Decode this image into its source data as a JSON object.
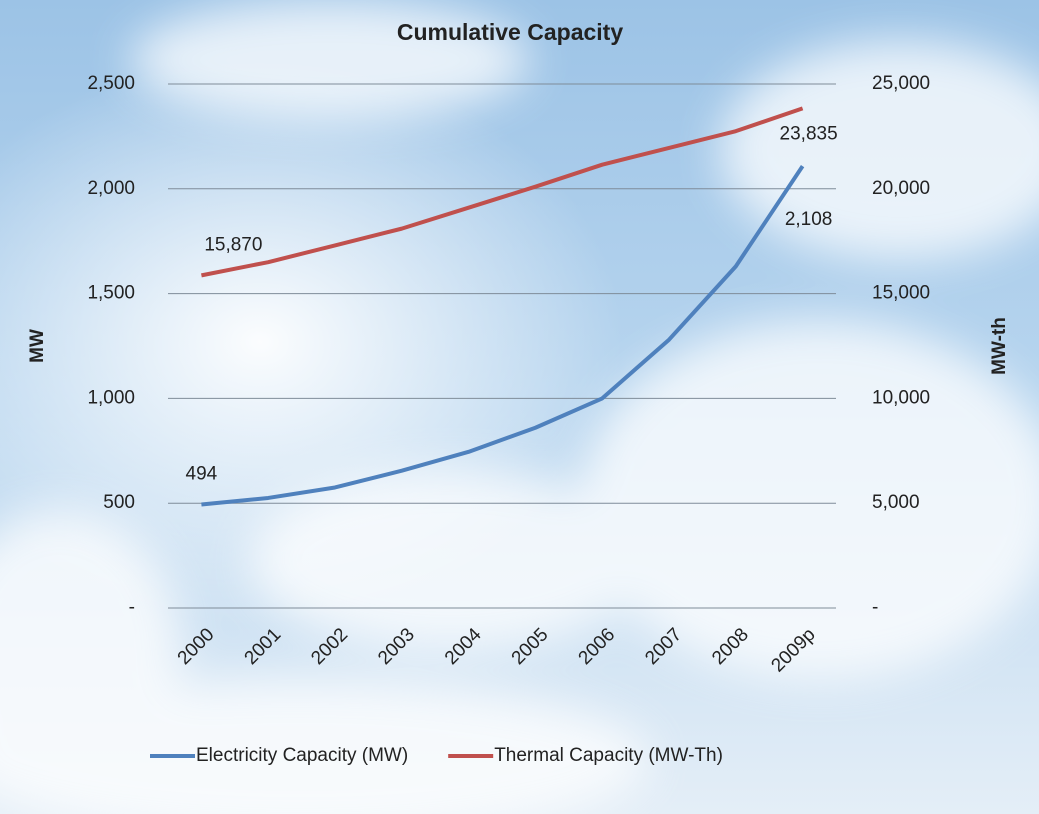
{
  "chart_data": {
    "type": "line",
    "title": "Cumulative Capacity",
    "y_label": "MW",
    "y2_label": "MW-th",
    "categories": [
      "2000",
      "2001",
      "2002",
      "2003",
      "2004",
      "2005",
      "2006",
      "2007",
      "2008",
      "2009p"
    ],
    "series": [
      {
        "name": "Electricity Capacity (MW)",
        "color": "#4f81bd",
        "values": [
          494,
          525,
          575,
          655,
          745,
          860,
          1000,
          1280,
          1630,
          2108
        ],
        "value_labels": [
          "494",
          null,
          null,
          null,
          null,
          null,
          null,
          null,
          null,
          "2,108"
        ]
      },
      {
        "name": "Thermal Capacity (MW-Th)",
        "color": "#c0504d",
        "axis": "y2",
        "values": [
          15870,
          16500,
          17300,
          18100,
          19100,
          20100,
          21150,
          21950,
          22750,
          23835
        ],
        "value_labels": [
          "15,870",
          null,
          null,
          null,
          null,
          null,
          null,
          null,
          null,
          "23,835"
        ]
      }
    ],
    "ylim": [
      0,
      2500
    ],
    "yticks": [
      {
        "value": 0,
        "label": "-"
      },
      500,
      {
        "value": 1000,
        "label": "1,000"
      },
      {
        "value": 1500,
        "label": "1,500"
      },
      {
        "value": 2000,
        "label": "2,000"
      },
      {
        "value": 2500,
        "label": "2,500"
      }
    ],
    "y2lim": [
      0,
      25000
    ],
    "y2ticks": [
      {
        "value": 0,
        "label": "-"
      },
      {
        "value": 5000,
        "label": "5,000"
      },
      {
        "value": 10000,
        "label": "10,000"
      },
      {
        "value": 15000,
        "label": "15,000"
      },
      {
        "value": 20000,
        "label": "20,000"
      },
      {
        "value": 25000,
        "label": "25,000"
      }
    ],
    "grid": true,
    "legend": "bottom"
  }
}
